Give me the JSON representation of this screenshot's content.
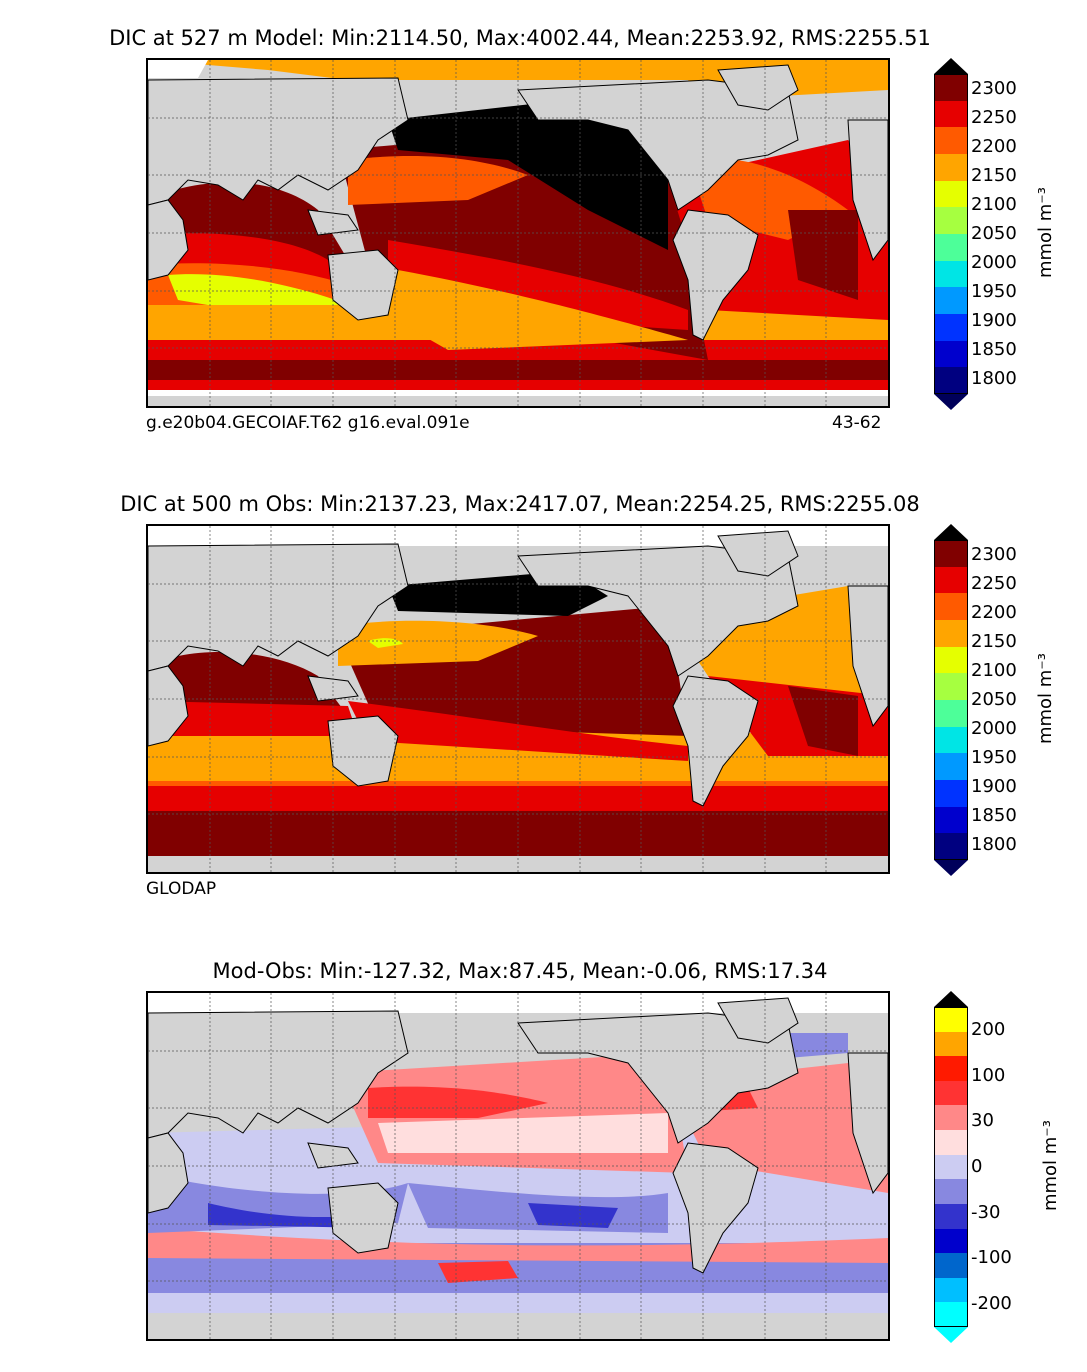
{
  "chart_data": [
    {
      "type": "heatmap",
      "title": "DIC at 527 m Model: Min:2114.50, Max:4002.44, Mean:2253.92, RMS:2255.51",
      "variable": "DIC",
      "depth": "527 m",
      "source": "Model",
      "stats": {
        "min": 2114.5,
        "max": 4002.44,
        "mean": 2253.92,
        "rms": 2255.51
      },
      "footer_left": "g.e20b04.GECOIAF.T62 g16.eval.091e",
      "footer_right": "43-62",
      "colorbar": {
        "label": "mmol m⁻³",
        "ticks": [
          "1800",
          "1850",
          "1900",
          "1950",
          "2000",
          "2050",
          "2100",
          "2150",
          "2200",
          "2250",
          "2300"
        ],
        "levels": [
          1775,
          1800,
          1825,
          1850,
          1875,
          1900,
          1925,
          1950,
          1975,
          2000,
          2025,
          2050,
          2075,
          2100,
          2125,
          2150,
          2175,
          2200,
          2225,
          2250,
          2275,
          2300,
          2325,
          2350
        ],
        "extend": "both"
      },
      "grid": true
    },
    {
      "type": "heatmap",
      "title": "DIC at 500 m Obs: Min:2137.23, Max:2417.07, Mean:2254.25, RMS:2255.08",
      "variable": "DIC",
      "depth": "500 m",
      "source": "Obs",
      "stats": {
        "min": 2137.23,
        "max": 2417.07,
        "mean": 2254.25,
        "rms": 2255.08
      },
      "footer_left": "GLODAP",
      "colorbar": {
        "label": "mmol m⁻³",
        "ticks": [
          "1800",
          "1850",
          "1900",
          "1950",
          "2000",
          "2050",
          "2100",
          "2150",
          "2200",
          "2250",
          "2300"
        ],
        "extend": "both"
      },
      "grid": true
    },
    {
      "type": "heatmap",
      "title": "Mod-Obs: Min:-127.32, Max:87.45, Mean:-0.06, RMS:17.34",
      "variable": "Mod-Obs",
      "stats": {
        "min": -127.32,
        "max": 87.45,
        "mean": -0.06,
        "rms": 17.34
      },
      "colorbar": {
        "label": "mmol m⁻³",
        "ticks": [
          "-200",
          "-100",
          "-30",
          "0",
          "30",
          "100",
          "200"
        ],
        "extend": "both"
      },
      "grid": true
    }
  ],
  "palette": {
    "dic": [
      "#000080",
      "#0000cd",
      "#0033ff",
      "#0099ff",
      "#00e5e5",
      "#4dff99",
      "#a6ff40",
      "#e5ff00",
      "#ffa500",
      "#ff5a00",
      "#e60000",
      "#800000"
    ],
    "dic_under": "#00005a",
    "dic_over": "#000000",
    "diff": [
      "#00ffff",
      "#00bfff",
      "#0066cc",
      "#0000cc",
      "#3333cc",
      "#8888e0",
      "#ccccf2",
      "#ffdede",
      "#ff8888",
      "#ff3333",
      "#ff1a00",
      "#ffa500",
      "#ffff00"
    ],
    "diff_under": "#00ffff",
    "diff_over": "#000000",
    "land": "#d3d3d3"
  }
}
